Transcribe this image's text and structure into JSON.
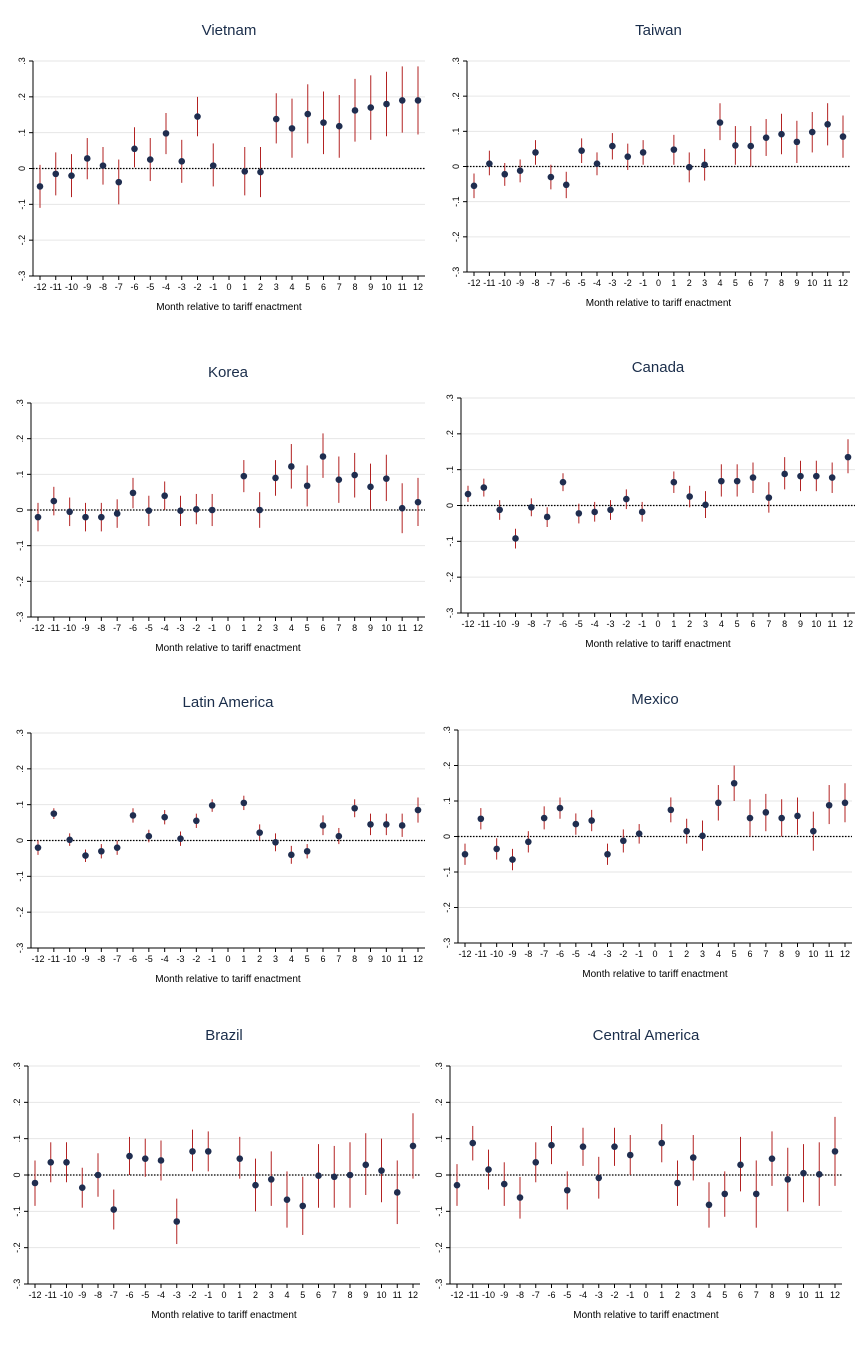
{
  "chart_data": [
    {
      "type": "scatter",
      "title": "Vietnam",
      "xlabel": "Month relative to tariff enactment",
      "ylabel": "",
      "x_ticks": [
        -12,
        -11,
        -10,
        -9,
        -8,
        -7,
        -6,
        -5,
        -4,
        -3,
        -2,
        -1,
        0,
        1,
        2,
        3,
        4,
        5,
        6,
        7,
        8,
        9,
        10,
        11,
        12
      ],
      "y_ticks": [
        ".3",
        ".2",
        ".1",
        "0",
        "-.1",
        "-.2",
        "-.3"
      ],
      "ylim": [
        -0.3,
        0.3
      ],
      "reference_line": 0,
      "x": [
        -12,
        -11,
        -10,
        -9,
        -8,
        -7,
        -6,
        -5,
        -4,
        -3,
        -2,
        -1,
        1,
        2,
        3,
        4,
        5,
        6,
        7,
        8,
        9,
        10,
        11,
        12
      ],
      "y": [
        -0.05,
        -0.015,
        -0.02,
        0.028,
        0.008,
        -0.038,
        0.055,
        0.025,
        0.098,
        0.02,
        0.145,
        0.008,
        -0.008,
        -0.01,
        0.138,
        0.112,
        0.152,
        0.128,
        0.118,
        0.162,
        0.17,
        0.18,
        0.19,
        0.19
      ],
      "ci_low": [
        -0.11,
        -0.075,
        -0.08,
        -0.03,
        -0.045,
        -0.1,
        0.003,
        -0.035,
        0.04,
        -0.04,
        0.09,
        -0.05,
        -0.075,
        -0.08,
        0.07,
        0.03,
        0.07,
        0.04,
        0.03,
        0.075,
        0.08,
        0.09,
        0.1,
        0.095
      ],
      "ci_high": [
        0.01,
        0.045,
        0.04,
        0.085,
        0.06,
        0.025,
        0.115,
        0.085,
        0.155,
        0.08,
        0.2,
        0.07,
        0.06,
        0.06,
        0.21,
        0.195,
        0.235,
        0.215,
        0.205,
        0.25,
        0.26,
        0.27,
        0.285,
        0.285
      ]
    },
    {
      "type": "scatter",
      "title": "Taiwan",
      "xlabel": "Month relative to tariff enactment",
      "ylabel": "",
      "x_ticks": [
        -12,
        -11,
        -10,
        -9,
        -8,
        -7,
        -6,
        -5,
        -4,
        -3,
        -2,
        -1,
        0,
        1,
        2,
        3,
        4,
        5,
        6,
        7,
        8,
        9,
        10,
        11,
        12
      ],
      "y_ticks": [
        ".3",
        ".2",
        ".1",
        "0",
        "-.1",
        "-.2",
        "-.3"
      ],
      "ylim": [
        -0.3,
        0.3
      ],
      "reference_line": 0,
      "x": [
        -12,
        -11,
        -10,
        -9,
        -8,
        -7,
        -6,
        -5,
        -4,
        -3,
        -2,
        -1,
        1,
        2,
        3,
        4,
        5,
        6,
        7,
        8,
        9,
        10,
        11,
        12
      ],
      "y": [
        -0.055,
        0.008,
        -0.022,
        -0.012,
        0.04,
        -0.03,
        -0.052,
        0.045,
        0.008,
        0.058,
        0.028,
        0.04,
        0.048,
        -0.002,
        0.005,
        0.125,
        0.06,
        0.058,
        0.082,
        0.092,
        0.07,
        0.098,
        0.12,
        0.085
      ],
      "ci_low": [
        -0.09,
        -0.025,
        -0.055,
        -0.045,
        0.005,
        -0.065,
        -0.09,
        0.01,
        -0.025,
        0.02,
        -0.01,
        0.005,
        0.005,
        -0.045,
        -0.04,
        0.075,
        0.005,
        0.0,
        0.03,
        0.035,
        0.01,
        0.04,
        0.06,
        0.025
      ],
      "ci_high": [
        -0.02,
        0.045,
        0.01,
        0.02,
        0.075,
        0.005,
        -0.015,
        0.08,
        0.04,
        0.095,
        0.065,
        0.075,
        0.09,
        0.04,
        0.05,
        0.18,
        0.115,
        0.115,
        0.135,
        0.15,
        0.13,
        0.155,
        0.18,
        0.145
      ]
    },
    {
      "type": "scatter",
      "title": "Korea",
      "xlabel": "Month relative to tariff enactment",
      "ylabel": "",
      "x_ticks": [
        -12,
        -11,
        -10,
        -9,
        -8,
        -7,
        -6,
        -5,
        -4,
        -3,
        -2,
        -1,
        0,
        1,
        2,
        3,
        4,
        5,
        6,
        7,
        8,
        9,
        10,
        11,
        12
      ],
      "y_ticks": [
        ".3",
        ".2",
        ".1",
        "0",
        "-.1",
        "-.2",
        "-.3"
      ],
      "ylim": [
        -0.3,
        0.3
      ],
      "reference_line": 0,
      "x": [
        -12,
        -11,
        -10,
        -9,
        -8,
        -7,
        -6,
        -5,
        -4,
        -3,
        -2,
        -1,
        1,
        2,
        3,
        4,
        5,
        6,
        7,
        8,
        9,
        10,
        11,
        12
      ],
      "y": [
        -0.02,
        0.025,
        -0.005,
        -0.02,
        -0.02,
        -0.01,
        0.048,
        -0.002,
        0.04,
        -0.002,
        0.002,
        0.0,
        0.095,
        0.0,
        0.09,
        0.122,
        0.068,
        0.15,
        0.085,
        0.098,
        0.065,
        0.088,
        0.005,
        0.022
      ],
      "ci_low": [
        -0.06,
        -0.015,
        -0.045,
        -0.06,
        -0.06,
        -0.05,
        0.005,
        -0.045,
        0.0,
        -0.045,
        -0.04,
        -0.045,
        0.05,
        -0.05,
        0.04,
        0.06,
        0.01,
        0.09,
        0.02,
        0.035,
        0.0,
        0.025,
        -0.065,
        -0.045
      ],
      "ci_high": [
        0.02,
        0.065,
        0.035,
        0.02,
        0.02,
        0.03,
        0.09,
        0.04,
        0.08,
        0.04,
        0.045,
        0.045,
        0.14,
        0.05,
        0.14,
        0.185,
        0.125,
        0.215,
        0.15,
        0.16,
        0.13,
        0.155,
        0.075,
        0.09
      ]
    },
    {
      "type": "scatter",
      "title": "Canada",
      "xlabel": "Month relative to tariff enactment",
      "ylabel": "",
      "x_ticks": [
        -12,
        -11,
        -10,
        -9,
        -8,
        -7,
        -6,
        -5,
        -4,
        -3,
        -2,
        -1,
        0,
        1,
        2,
        3,
        4,
        5,
        6,
        7,
        8,
        9,
        10,
        11,
        12
      ],
      "y_ticks": [
        ".3",
        ".2",
        ".1",
        "0",
        "-.1",
        "-.2",
        "-.3"
      ],
      "ylim": [
        -0.3,
        0.3
      ],
      "reference_line": 0,
      "x": [
        -12,
        -11,
        -10,
        -9,
        -8,
        -7,
        -6,
        -5,
        -4,
        -3,
        -2,
        -1,
        1,
        2,
        3,
        4,
        5,
        6,
        7,
        8,
        9,
        10,
        11,
        12
      ],
      "y": [
        0.032,
        0.05,
        -0.012,
        -0.092,
        -0.005,
        -0.032,
        0.065,
        -0.022,
        -0.018,
        -0.012,
        0.018,
        -0.018,
        0.065,
        0.025,
        0.002,
        0.068,
        0.068,
        0.078,
        0.022,
        0.088,
        0.082,
        0.082,
        0.078,
        0.135
      ],
      "ci_low": [
        0.01,
        0.025,
        -0.04,
        -0.12,
        -0.03,
        -0.06,
        0.04,
        -0.05,
        -0.045,
        -0.04,
        -0.01,
        -0.045,
        0.035,
        -0.005,
        -0.035,
        0.025,
        0.025,
        0.035,
        -0.02,
        0.045,
        0.04,
        0.04,
        0.035,
        0.09
      ],
      "ci_high": [
        0.055,
        0.075,
        0.015,
        -0.065,
        0.02,
        -0.005,
        0.09,
        0.005,
        0.01,
        0.015,
        0.045,
        0.01,
        0.095,
        0.055,
        0.04,
        0.115,
        0.115,
        0.12,
        0.065,
        0.135,
        0.125,
        0.125,
        0.12,
        0.185
      ]
    },
    {
      "type": "scatter",
      "title": "Latin America",
      "xlabel": "Month relative to tariff enactment",
      "ylabel": "",
      "x_ticks": [
        -12,
        -11,
        -10,
        -9,
        -8,
        -7,
        -6,
        -5,
        -4,
        -3,
        -2,
        -1,
        0,
        1,
        2,
        3,
        4,
        5,
        6,
        7,
        8,
        9,
        10,
        11,
        12
      ],
      "y_ticks": [
        ".3",
        ".2",
        ".1",
        "0",
        "-.1",
        "-.2",
        "-.3"
      ],
      "ylim": [
        -0.3,
        0.3
      ],
      "reference_line": 0,
      "x": [
        -12,
        -11,
        -10,
        -9,
        -8,
        -7,
        -6,
        -5,
        -4,
        -3,
        -2,
        -1,
        1,
        2,
        3,
        4,
        5,
        6,
        7,
        8,
        9,
        10,
        11,
        12
      ],
      "y": [
        -0.02,
        0.075,
        0.002,
        -0.042,
        -0.03,
        -0.02,
        0.07,
        0.012,
        0.065,
        0.005,
        0.055,
        0.098,
        0.105,
        0.022,
        -0.005,
        -0.04,
        -0.03,
        0.042,
        0.012,
        0.09,
        0.045,
        0.045,
        0.042,
        0.085
      ],
      "ci_low": [
        -0.04,
        0.06,
        -0.015,
        -0.06,
        -0.05,
        -0.04,
        0.05,
        -0.005,
        0.045,
        -0.015,
        0.035,
        0.08,
        0.085,
        0.0,
        -0.03,
        -0.065,
        -0.05,
        0.015,
        -0.01,
        0.065,
        0.015,
        0.015,
        0.01,
        0.05
      ],
      "ci_high": [
        0.0,
        0.09,
        0.02,
        -0.025,
        -0.01,
        0.0,
        0.09,
        0.03,
        0.085,
        0.025,
        0.075,
        0.115,
        0.125,
        0.045,
        0.02,
        -0.015,
        -0.01,
        0.07,
        0.035,
        0.115,
        0.075,
        0.075,
        0.075,
        0.12
      ]
    },
    {
      "type": "scatter",
      "title": "Mexico",
      "xlabel": "Month relative to tariff enactment",
      "ylabel": "",
      "x_ticks": [
        -12,
        -11,
        -10,
        -9,
        -8,
        -7,
        -6,
        -5,
        -4,
        -3,
        -2,
        -1,
        0,
        1,
        2,
        3,
        4,
        5,
        6,
        7,
        8,
        9,
        10,
        11,
        12
      ],
      "y_ticks": [
        ".3",
        ".2",
        ".1",
        "0",
        "-.1",
        "-.2",
        "-.3"
      ],
      "ylim": [
        -0.3,
        0.3
      ],
      "reference_line": 0,
      "x": [
        -12,
        -11,
        -10,
        -9,
        -8,
        -7,
        -6,
        -5,
        -4,
        -3,
        -2,
        -1,
        1,
        2,
        3,
        4,
        5,
        6,
        7,
        8,
        9,
        10,
        11,
        12
      ],
      "y": [
        -0.05,
        0.05,
        -0.035,
        -0.065,
        -0.015,
        0.052,
        0.08,
        0.035,
        0.045,
        -0.05,
        -0.012,
        0.008,
        0.075,
        0.015,
        0.002,
        0.095,
        0.15,
        0.052,
        0.068,
        0.052,
        0.058,
        0.015,
        0.088,
        0.095
      ],
      "ci_low": [
        -0.08,
        0.02,
        -0.065,
        -0.095,
        -0.045,
        0.02,
        0.05,
        0.005,
        0.015,
        -0.08,
        -0.045,
        -0.02,
        0.04,
        -0.02,
        -0.04,
        0.045,
        0.1,
        0.0,
        0.015,
        0.0,
        0.005,
        -0.04,
        0.035,
        0.04
      ],
      "ci_high": [
        -0.02,
        0.08,
        -0.005,
        -0.035,
        0.015,
        0.085,
        0.11,
        0.065,
        0.075,
        -0.02,
        0.02,
        0.035,
        0.11,
        0.05,
        0.045,
        0.145,
        0.2,
        0.105,
        0.12,
        0.105,
        0.11,
        0.07,
        0.145,
        0.15
      ]
    },
    {
      "type": "scatter",
      "title": "Brazil",
      "xlabel": "Month relative to tariff enactment",
      "ylabel": "",
      "x_ticks": [
        -12,
        -11,
        -10,
        -9,
        -8,
        -7,
        -6,
        -5,
        -4,
        -3,
        -2,
        -1,
        0,
        1,
        2,
        3,
        4,
        5,
        6,
        7,
        8,
        9,
        10,
        11,
        12
      ],
      "y_ticks": [
        ".3",
        ".2",
        ".1",
        "0",
        "-.1",
        "-.2",
        "-.3"
      ],
      "ylim": [
        -0.3,
        0.3
      ],
      "reference_line": 0,
      "x": [
        -12,
        -11,
        -10,
        -9,
        -8,
        -7,
        -6,
        -5,
        -4,
        -3,
        -2,
        -1,
        1,
        2,
        3,
        4,
        5,
        6,
        7,
        8,
        9,
        10,
        11,
        12
      ],
      "y": [
        -0.022,
        0.035,
        0.035,
        -0.035,
        0.0,
        -0.095,
        0.052,
        0.045,
        0.04,
        -0.128,
        0.065,
        0.065,
        0.045,
        -0.028,
        -0.012,
        -0.068,
        -0.085,
        -0.002,
        -0.005,
        0.0,
        0.028,
        0.012,
        -0.048,
        0.08
      ],
      "ci_low": [
        -0.085,
        -0.02,
        -0.02,
        -0.09,
        -0.06,
        -0.15,
        0.0,
        -0.005,
        -0.015,
        -0.19,
        0.01,
        0.01,
        -0.01,
        -0.1,
        -0.085,
        -0.145,
        -0.165,
        -0.09,
        -0.09,
        -0.09,
        -0.055,
        -0.075,
        -0.135,
        -0.01
      ],
      "ci_high": [
        0.04,
        0.09,
        0.09,
        0.02,
        0.06,
        -0.04,
        0.105,
        0.1,
        0.095,
        -0.065,
        0.125,
        0.12,
        0.105,
        0.045,
        0.065,
        0.01,
        -0.005,
        0.085,
        0.08,
        0.09,
        0.115,
        0.1,
        0.04,
        0.17
      ]
    },
    {
      "type": "scatter",
      "title": "Central America",
      "xlabel": "Month relative to tariff enactment",
      "ylabel": "",
      "x_ticks": [
        -12,
        -11,
        -10,
        -9,
        -8,
        -7,
        -6,
        -5,
        -4,
        -3,
        -2,
        -1,
        0,
        1,
        2,
        3,
        4,
        5,
        6,
        7,
        8,
        9,
        10,
        11,
        12
      ],
      "y_ticks": [
        ".3",
        ".2",
        ".1",
        "0",
        "-.1",
        "-.2",
        "-.3"
      ],
      "ylim": [
        -0.3,
        0.3
      ],
      "reference_line": 0,
      "x": [
        -12,
        -11,
        -10,
        -9,
        -8,
        -7,
        -6,
        -5,
        -4,
        -3,
        -2,
        -1,
        1,
        2,
        3,
        4,
        5,
        6,
        7,
        8,
        9,
        10,
        11,
        12
      ],
      "y": [
        -0.028,
        0.088,
        0.015,
        -0.025,
        -0.062,
        0.035,
        0.082,
        -0.042,
        0.078,
        -0.008,
        0.078,
        0.055,
        0.088,
        -0.022,
        0.048,
        -0.082,
        -0.052,
        0.028,
        -0.052,
        0.045,
        -0.012,
        0.005,
        0.002,
        0.065
      ],
      "ci_low": [
        -0.085,
        0.04,
        -0.04,
        -0.085,
        -0.12,
        -0.02,
        0.03,
        -0.095,
        0.025,
        -0.065,
        0.025,
        0.0,
        0.035,
        -0.085,
        -0.015,
        -0.145,
        -0.115,
        -0.045,
        -0.145,
        -0.03,
        -0.1,
        -0.075,
        -0.085,
        -0.03
      ],
      "ci_high": [
        0.03,
        0.135,
        0.07,
        0.035,
        -0.005,
        0.09,
        0.135,
        0.01,
        0.13,
        0.05,
        0.13,
        0.11,
        0.14,
        0.04,
        0.11,
        -0.02,
        0.01,
        0.105,
        0.04,
        0.12,
        0.075,
        0.085,
        0.09,
        0.16
      ]
    }
  ]
}
